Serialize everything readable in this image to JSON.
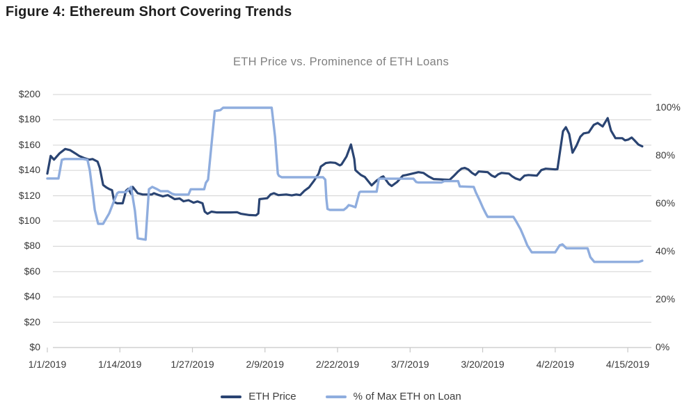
{
  "figure_title": "Figure 4: Ethereum Short Covering Trends",
  "chart_data": {
    "type": "line",
    "title": "ETH Price vs. Prominence of ETH Loans",
    "grid": true,
    "legend_position": "bottom",
    "colors": {
      "gridline": "#d9d9d9",
      "axis_line": "#c7c7c7",
      "tick": "#c7c7c7",
      "axis_text": "#383838",
      "title_text": "#7f7f7f"
    },
    "x_axis": {
      "tick_days": [
        0,
        13,
        26,
        39,
        52,
        65,
        78,
        91,
        104
      ],
      "tick_labels": [
        "1/1/2019",
        "1/14/2019",
        "1/27/2019",
        "2/9/2019",
        "2/22/2019",
        "3/7/2019",
        "3/20/2019",
        "4/2/2019",
        "4/15/2019"
      ]
    },
    "y_axis_left": {
      "min": 0,
      "max": 200,
      "step": 20,
      "ticks": [
        {
          "value": 200,
          "label": "$200"
        },
        {
          "value": 180,
          "label": "$180"
        },
        {
          "value": 160,
          "label": "$160"
        },
        {
          "value": 140,
          "label": "$140"
        },
        {
          "value": 120,
          "label": "$120"
        },
        {
          "value": 100,
          "label": "$100"
        },
        {
          "value": 80,
          "label": "$80"
        },
        {
          "value": 60,
          "label": "$60"
        },
        {
          "value": 40,
          "label": "$40"
        },
        {
          "value": 20,
          "label": "$20"
        },
        {
          "value": 0,
          "label": "$0"
        }
      ]
    },
    "y_axis_right": {
      "min": 0,
      "max": 100,
      "step": 20,
      "ticks": [
        {
          "value": 100,
          "label": "100%"
        },
        {
          "value": 80,
          "label": "80%"
        },
        {
          "value": 60,
          "label": "60%"
        },
        {
          "value": 40,
          "label": "40%"
        },
        {
          "value": 20,
          "label": "20%"
        },
        {
          "value": 0,
          "label": "0%"
        }
      ]
    },
    "series": [
      {
        "name": "ETH Price",
        "axis": "left",
        "color": "#2a4472",
        "points": [
          [
            0,
            137.5
          ],
          [
            0.6,
            151.5
          ],
          [
            1.2,
            148.5
          ],
          [
            2.2,
            153.5
          ],
          [
            3.2,
            157
          ],
          [
            4.1,
            156
          ],
          [
            5,
            153.5
          ],
          [
            5.7,
            151.5
          ],
          [
            6.6,
            149.8
          ],
          [
            7.5,
            148.5
          ],
          [
            8.1,
            149
          ],
          [
            9,
            147
          ],
          [
            9.4,
            142
          ],
          [
            10,
            128.5
          ],
          [
            10.5,
            126.8
          ],
          [
            11.1,
            125.3
          ],
          [
            11.6,
            124.4
          ],
          [
            12,
            115
          ],
          [
            12.5,
            114
          ],
          [
            13.5,
            114
          ],
          [
            14.1,
            124
          ],
          [
            14.5,
            125.5
          ],
          [
            15,
            121.5
          ],
          [
            15.3,
            127
          ],
          [
            16.2,
            122
          ],
          [
            17.1,
            121
          ],
          [
            18.7,
            121
          ],
          [
            19.1,
            122
          ],
          [
            20,
            120.5
          ],
          [
            20.7,
            119.5
          ],
          [
            21.6,
            120.5
          ],
          [
            22.4,
            118.4
          ],
          [
            22.8,
            117.3
          ],
          [
            23.7,
            117.8
          ],
          [
            24.4,
            115.6
          ],
          [
            25.3,
            116.5
          ],
          [
            26.2,
            114.5
          ],
          [
            26.9,
            115.5
          ],
          [
            27.8,
            114
          ],
          [
            28.2,
            107.4
          ],
          [
            28.7,
            105.7
          ],
          [
            29.4,
            107.4
          ],
          [
            30.3,
            106.8
          ],
          [
            32.8,
            106.8
          ],
          [
            34,
            107
          ],
          [
            34.7,
            105.7
          ],
          [
            36.2,
            104.7
          ],
          [
            37.4,
            104.5
          ],
          [
            37.8,
            106
          ],
          [
            38,
            117.3
          ],
          [
            39.4,
            118
          ],
          [
            40,
            121
          ],
          [
            40.6,
            122
          ],
          [
            41.4,
            120.5
          ],
          [
            42.8,
            121
          ],
          [
            43.8,
            120.3
          ],
          [
            44.6,
            121
          ],
          [
            45.3,
            120.5
          ],
          [
            46.1,
            124
          ],
          [
            46.9,
            126.6
          ],
          [
            47.8,
            132
          ],
          [
            48.6,
            137.5
          ],
          [
            49,
            143
          ],
          [
            49.9,
            145.8
          ],
          [
            50.7,
            146.3
          ],
          [
            51.6,
            146
          ],
          [
            52.4,
            144
          ],
          [
            52.7,
            144.7
          ],
          [
            53.6,
            151
          ],
          [
            54.4,
            160.5
          ],
          [
            55,
            149
          ],
          [
            55.2,
            140.3
          ],
          [
            55.6,
            138.6
          ],
          [
            56.2,
            136.4
          ],
          [
            56.9,
            134.8
          ],
          [
            58.1,
            128.2
          ],
          [
            59,
            132
          ],
          [
            59.9,
            134.8
          ],
          [
            60.2,
            135.3
          ],
          [
            61.2,
            129.3
          ],
          [
            61.7,
            127.7
          ],
          [
            62.7,
            131
          ],
          [
            63.7,
            135.9
          ],
          [
            64.3,
            136.4
          ],
          [
            66.5,
            138.6
          ],
          [
            67.4,
            138
          ],
          [
            68.3,
            135.3
          ],
          [
            69.2,
            133.2
          ],
          [
            72.1,
            132.6
          ],
          [
            72.9,
            136
          ],
          [
            73.6,
            139.2
          ],
          [
            74.2,
            141.4
          ],
          [
            74.8,
            142
          ],
          [
            75.4,
            140.8
          ],
          [
            76.1,
            138
          ],
          [
            76.7,
            136.4
          ],
          [
            77.3,
            139.2
          ],
          [
            78.9,
            138.6
          ],
          [
            79.6,
            136
          ],
          [
            80.2,
            134.8
          ],
          [
            80.8,
            137
          ],
          [
            81.4,
            138
          ],
          [
            82.7,
            137.5
          ],
          [
            83.3,
            135.3
          ],
          [
            83.9,
            133.7
          ],
          [
            84.7,
            132.5
          ],
          [
            85.5,
            135.9
          ],
          [
            86.2,
            136.4
          ],
          [
            87.7,
            135.9
          ],
          [
            88.5,
            140.3
          ],
          [
            89.3,
            141.4
          ],
          [
            91,
            140.8
          ],
          [
            91.4,
            141
          ],
          [
            92.4,
            171
          ],
          [
            92.9,
            174.2
          ],
          [
            93.5,
            168.8
          ],
          [
            94.1,
            154
          ],
          [
            94.8,
            159.5
          ],
          [
            95.5,
            166.6
          ],
          [
            96.1,
            169.3
          ],
          [
            97,
            170
          ],
          [
            97.9,
            176
          ],
          [
            98.6,
            177.5
          ],
          [
            99.5,
            174.8
          ],
          [
            100.4,
            181.4
          ],
          [
            101,
            171.5
          ],
          [
            101.8,
            165.5
          ],
          [
            103,
            165.5
          ],
          [
            103.5,
            163.8
          ],
          [
            104.1,
            164.4
          ],
          [
            104.7,
            166
          ],
          [
            105.2,
            163.8
          ],
          [
            105.9,
            160.5
          ],
          [
            106.6,
            159
          ]
        ]
      },
      {
        "name": "% of Max ETH on Loan",
        "axis": "right",
        "color": "#8fadde",
        "points": [
          [
            0,
            70.5
          ],
          [
            2,
            70.5
          ],
          [
            2.6,
            78.3
          ],
          [
            3.1,
            78.6
          ],
          [
            6.4,
            78.6
          ],
          [
            7.2,
            78.3
          ],
          [
            7.6,
            74
          ],
          [
            8.1,
            65
          ],
          [
            8.5,
            57.4
          ],
          [
            9.1,
            51.6
          ],
          [
            10,
            51.6
          ],
          [
            10.3,
            52.8
          ],
          [
            11.1,
            56
          ],
          [
            12,
            61.4
          ],
          [
            12.5,
            64.3
          ],
          [
            12.8,
            64.8
          ],
          [
            14.1,
            64.8
          ],
          [
            15,
            67
          ],
          [
            15.7,
            57
          ],
          [
            16.2,
            45.5
          ],
          [
            17.6,
            45
          ],
          [
            18.2,
            66
          ],
          [
            18.8,
            67
          ],
          [
            19.7,
            66
          ],
          [
            20.3,
            65.2
          ],
          [
            21.6,
            65.2
          ],
          [
            22.4,
            64.1
          ],
          [
            22.9,
            63.8
          ],
          [
            25.3,
            63.8
          ],
          [
            25.7,
            66
          ],
          [
            28.1,
            66
          ],
          [
            28.4,
            68.7
          ],
          [
            28.8,
            70
          ],
          [
            30,
            98.6
          ],
          [
            31,
            99
          ],
          [
            31.5,
            100
          ],
          [
            40.2,
            100
          ],
          [
            40.8,
            88
          ],
          [
            41.3,
            72.5
          ],
          [
            41.5,
            71.6
          ],
          [
            42,
            71
          ],
          [
            49.4,
            71
          ],
          [
            49.8,
            70
          ],
          [
            50,
            62
          ],
          [
            50.2,
            57.8
          ],
          [
            50.6,
            57.4
          ],
          [
            53.1,
            57.4
          ],
          [
            53.6,
            58.3
          ],
          [
            54,
            59.4
          ],
          [
            54.6,
            59
          ],
          [
            55.2,
            58.5
          ],
          [
            55.9,
            64.6
          ],
          [
            56.1,
            65
          ],
          [
            59,
            65
          ],
          [
            59.4,
            70.4
          ],
          [
            65.6,
            70.4
          ],
          [
            66.1,
            69
          ],
          [
            66.5,
            68.8
          ],
          [
            70.6,
            68.8
          ],
          [
            71.1,
            69.4
          ],
          [
            73.6,
            69.4
          ],
          [
            73.9,
            67.2
          ],
          [
            76.4,
            67
          ],
          [
            76.8,
            64.6
          ],
          [
            77.4,
            61.7
          ],
          [
            78.1,
            58
          ],
          [
            78.6,
            55.7
          ],
          [
            78.9,
            54.5
          ],
          [
            83.5,
            54.5
          ],
          [
            83.9,
            53
          ],
          [
            84.8,
            49.3
          ],
          [
            85.5,
            45.5
          ],
          [
            86,
            42.6
          ],
          [
            86.8,
            39.7
          ],
          [
            91,
            39.7
          ],
          [
            91.8,
            42.6
          ],
          [
            92.3,
            43
          ],
          [
            93,
            41.4
          ],
          [
            96.8,
            41.4
          ],
          [
            97.3,
            37.7
          ],
          [
            97.6,
            36.8
          ],
          [
            98,
            35.7
          ],
          [
            106,
            35.7
          ],
          [
            106.6,
            36.2
          ]
        ]
      }
    ]
  }
}
